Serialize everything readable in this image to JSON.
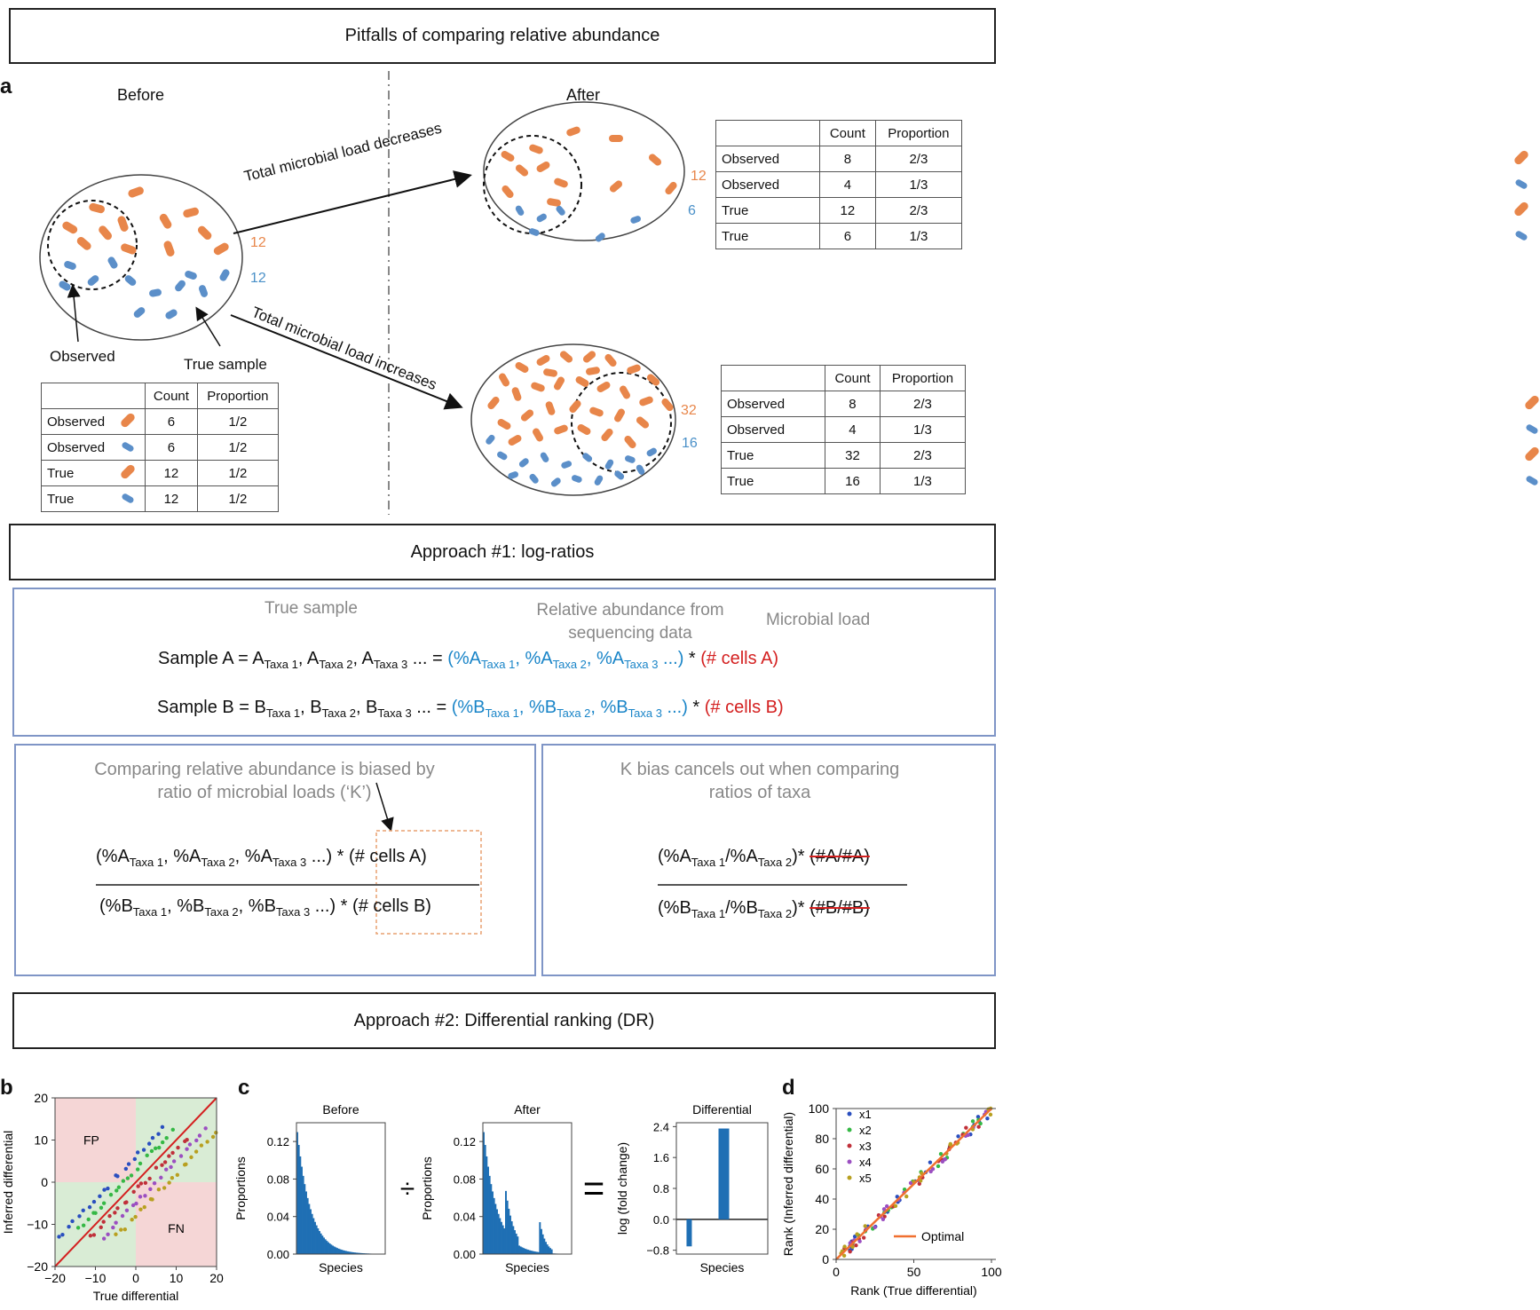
{
  "header": {
    "title": "Pitfalls of comparing relative abundance"
  },
  "panel_a": {
    "letter": "a",
    "before_label": "Before",
    "after_label": "After",
    "arrow_decrease": "Total microbial load decreases",
    "arrow_increase": "Total microbial load increases",
    "observed_label": "Observed",
    "true_sample_label": "True sample",
    "before_counts": {
      "orange": "12",
      "blue": "12"
    },
    "after_top_counts": {
      "orange": "12",
      "blue": "6"
    },
    "after_bottom_counts": {
      "orange": "32",
      "blue": "16"
    },
    "table_headers": {
      "count": "Count",
      "proportion": "Proportion"
    },
    "table_before": [
      {
        "label": "Observed",
        "icon": "orange-bacterium-icon",
        "count": "6",
        "proportion": "1/2"
      },
      {
        "label": "Observed",
        "icon": "blue-bacterium-icon",
        "count": "6",
        "proportion": "1/2"
      },
      {
        "label": "True",
        "icon": "orange-bacterium-icon",
        "count": "12",
        "proportion": "1/2"
      },
      {
        "label": "True",
        "icon": "blue-bacterium-icon",
        "count": "12",
        "proportion": "1/2"
      }
    ],
    "table_after_top": [
      {
        "label": "Observed",
        "icon": "orange-bacterium-icon",
        "count": "8",
        "proportion": "2/3"
      },
      {
        "label": "Observed",
        "icon": "blue-bacterium-icon",
        "count": "4",
        "proportion": "1/3"
      },
      {
        "label": "True",
        "icon": "orange-bacterium-icon",
        "count": "12",
        "proportion": "2/3"
      },
      {
        "label": "True",
        "icon": "blue-bacterium-icon",
        "count": "6",
        "proportion": "1/3"
      }
    ],
    "table_after_bottom": [
      {
        "label": "Observed",
        "icon": "orange-bacterium-icon",
        "count": "8",
        "proportion": "2/3"
      },
      {
        "label": "Observed",
        "icon": "blue-bacterium-icon",
        "count": "4",
        "proportion": "1/3"
      },
      {
        "label": "True",
        "icon": "orange-bacterium-icon",
        "count": "32",
        "proportion": "2/3"
      },
      {
        "label": "True",
        "icon": "blue-bacterium-icon",
        "count": "16",
        "proportion": "1/3"
      }
    ],
    "colors": {
      "orange": "#e8864a",
      "blue": "#5b8fc9"
    }
  },
  "approach1": {
    "title": "Approach #1: log-ratios",
    "col_true": "True sample",
    "col_rel": "Relative abundance from sequencing data",
    "col_load": "Microbial load",
    "sample_a": "Sample A",
    "sample_b": "Sample B",
    "cells_a": "(# cells A)",
    "cells_b": "(# cells B)",
    "left_caption": "Comparing relative abundance is biased by ratio of microbial loads (‘K’)",
    "right_caption": "K bias cancels out when comparing ratios of taxa",
    "strike_a": "(#A/#A)",
    "strike_b": "(#B/#B)",
    "taxa": [
      "Taxa 1",
      "Taxa 2",
      "Taxa 3"
    ]
  },
  "approach2": {
    "title": "Approach #2: Differential ranking (DR)"
  },
  "panel_b": {
    "letter": "b",
    "regions": {
      "fp": "FP",
      "fn": "FN"
    }
  },
  "panel_c": {
    "letter": "c"
  },
  "panel_d": {
    "letter": "d"
  },
  "chart_data": [
    {
      "type": "scatter",
      "panel": "b",
      "xlabel": "True differential",
      "ylabel": "Inferred differential",
      "xlim": [
        -20,
        20
      ],
      "ylim": [
        -20,
        20
      ],
      "xticks": [
        -20,
        -10,
        0,
        10,
        20
      ],
      "yticks": [
        -20,
        -10,
        0,
        10,
        20
      ],
      "reference_line": {
        "slope": 1,
        "intercept": 0,
        "color": "#d42020"
      },
      "series": [
        {
          "color": "#2a4fbf",
          "x0": -19,
          "x1": 7,
          "offset": 6
        },
        {
          "color": "#35b845",
          "x0": -14,
          "x1": 9,
          "offset": 3
        },
        {
          "color": "#c0303a",
          "x0": -11,
          "x1": 13,
          "offset": -2
        },
        {
          "color": "#9b4fc1",
          "x0": -8,
          "x1": 17,
          "offset": -5
        },
        {
          "color": "#b8a020",
          "x0": -5,
          "x1": 20,
          "offset": -8
        }
      ]
    },
    {
      "type": "bar",
      "panel": "c",
      "title": "Before",
      "xlabel": "Species",
      "ylabel": "Proportions",
      "ylim": [
        0,
        0.14
      ],
      "yticks": [
        "0.00",
        "0.04",
        "0.08",
        "0.12"
      ],
      "shape": "decay",
      "peak": 0.13
    },
    {
      "type": "bar",
      "panel": "c",
      "title": "After",
      "xlabel": "Species",
      "ylabel": "Proportions",
      "ylim": [
        0,
        0.14
      ],
      "yticks": [
        "0.00",
        "0.04",
        "0.08",
        "0.12"
      ],
      "shape": "decay-with-bumps",
      "peak": 0.13
    },
    {
      "type": "bar",
      "panel": "c",
      "title": "Differential",
      "xlabel": "Species",
      "ylabel": "log (fold change)",
      "ylim": [
        -0.9,
        2.5
      ],
      "yticks": [
        "−0.8",
        "0.0",
        "0.8",
        "1.6",
        "2.4"
      ],
      "bars": [
        {
          "x": 0.15,
          "value": -0.7
        },
        {
          "x": 0.5,
          "value": 2.35
        }
      ]
    },
    {
      "type": "scatter",
      "panel": "d",
      "xlabel": "Rank (True differential)",
      "ylabel": "Rank (Inferred differential)",
      "xlim": [
        0,
        100
      ],
      "ylim": [
        0,
        100
      ],
      "xticks": [
        "0",
        "50",
        "100"
      ],
      "yticks": [
        "0",
        "20",
        "40",
        "60",
        "80",
        "100"
      ],
      "legend": [
        "x1",
        "x2",
        "x3",
        "x4",
        "x5"
      ],
      "legend_colors": [
        "#2a4fbf",
        "#35b845",
        "#c0303a",
        "#9b4fc1",
        "#b8a020"
      ],
      "optimal_label": "Optimal",
      "optimal_color": "#f07030"
    }
  ],
  "symbols": {
    "divide": "÷",
    "equals": "="
  }
}
